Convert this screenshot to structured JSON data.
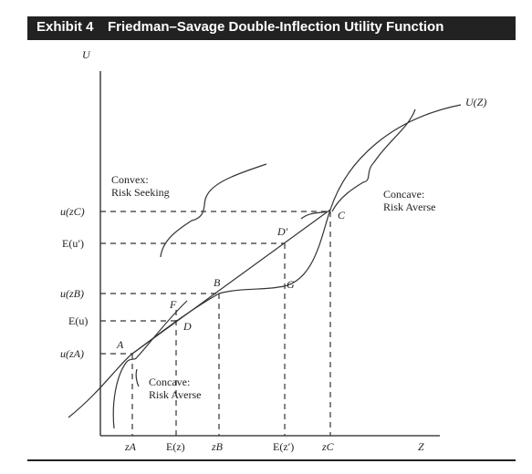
{
  "header": {
    "exhibit_number": "Exhibit 4",
    "title": "Friedman–Savage Double-Inflection Utility Function"
  },
  "diagram": {
    "y_axis_label": "U",
    "x_axis_label": "Z",
    "curve_label": "U(Z)",
    "y_ticks": [
      "u(zC)",
      "E(u′)",
      "u(zB)",
      "E(u)",
      "u(zA)"
    ],
    "x_ticks": [
      "zA",
      "E(z)",
      "zB",
      "E(z′)",
      "zC"
    ],
    "points": {
      "A": "A",
      "B": "B",
      "C": "C",
      "D": "D",
      "F": "F",
      "G": "G",
      "D_prime": "D′"
    },
    "annotations": {
      "convex_title": "Convex:",
      "convex_sub": "Risk Seeking",
      "concave_upper_title": "Concave:",
      "concave_upper_sub": "Risk Averse",
      "concave_lower_title": "Concave:",
      "concave_lower_sub": "Risk Averse"
    }
  }
}
